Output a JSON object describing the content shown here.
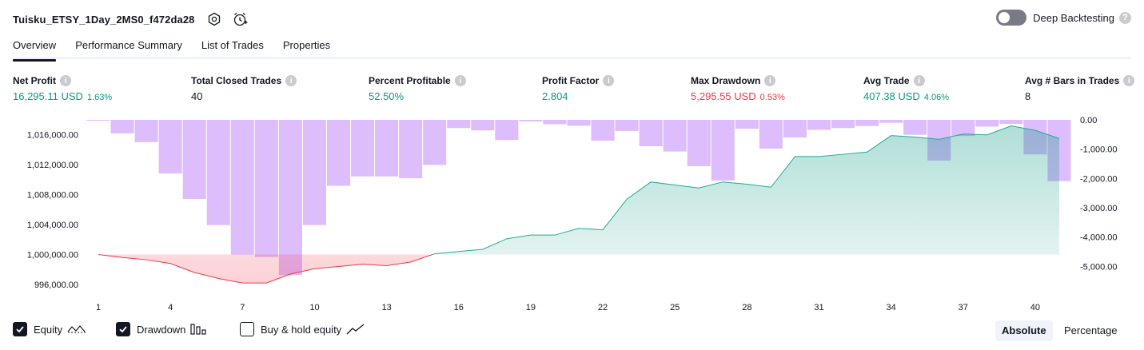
{
  "strategy": {
    "name": "Tuisku_ETSY_1Day_2MS0_f472da28"
  },
  "deep_backtesting": {
    "label": "Deep Backtesting",
    "enabled": false,
    "help": "?"
  },
  "tabs": [
    {
      "label": "Overview",
      "active": true
    },
    {
      "label": "Performance Summary",
      "active": false
    },
    {
      "label": "List of Trades",
      "active": false
    },
    {
      "label": "Properties",
      "active": false
    }
  ],
  "info_glyph": "i",
  "metrics": {
    "net_profit": {
      "label": "Net Profit",
      "value": "16,295.11 USD",
      "pct": "1.63%"
    },
    "total_closed_trades": {
      "label": "Total Closed Trades",
      "value": "40"
    },
    "percent_profitable": {
      "label": "Percent Profitable",
      "value": "52.50%"
    },
    "profit_factor": {
      "label": "Profit Factor",
      "value": "2.804"
    },
    "max_drawdown": {
      "label": "Max Drawdown",
      "value": "5,295.55 USD",
      "pct": "0.53%"
    },
    "avg_trade": {
      "label": "Avg Trade",
      "value": "407.38 USD",
      "pct": "4.06%"
    },
    "avg_bars": {
      "label": "Avg # Bars in Trades",
      "value": "8"
    }
  },
  "colors": {
    "profit": "#089981",
    "loss": "#f23645",
    "equity_line": "#22ab94",
    "drawdown_line": "#f23645",
    "drawdown_bar": "#d9b6fb"
  },
  "legend": {
    "equity": {
      "label": "Equity",
      "checked": true,
      "icon": "equity-line-icon"
    },
    "drawdown": {
      "label": "Drawdown",
      "checked": true,
      "icon": "drawdown-bars-icon"
    },
    "buy_hold": {
      "label": "Buy & hold equity",
      "checked": false,
      "icon": "trend-line-icon"
    }
  },
  "view_mode": {
    "absolute": "Absolute",
    "percentage": "Percentage",
    "selected": "Absolute"
  },
  "chart_data": {
    "type": "area",
    "x": [
      1,
      2,
      3,
      4,
      5,
      6,
      7,
      8,
      9,
      10,
      11,
      12,
      13,
      14,
      15,
      16,
      17,
      18,
      19,
      20,
      21,
      22,
      23,
      24,
      25,
      26,
      27,
      28,
      29,
      30,
      31,
      32,
      33,
      34,
      35,
      36,
      37,
      38,
      39,
      40,
      41
    ],
    "x_ticks": [
      "1",
      "4",
      "7",
      "10",
      "13",
      "16",
      "19",
      "22",
      "25",
      "28",
      "31",
      "34",
      "37",
      "40"
    ],
    "y_left_ticks": [
      "1,016,000.00",
      "1,012,000.00",
      "1,008,000.00",
      "1,004,000.00",
      "1,000,000.00",
      "996,000.00"
    ],
    "y_left_range": [
      994500,
      1018000
    ],
    "y_right_ticks": [
      "0.00",
      "-1,000.00",
      "-2,000.00",
      "-3,000.00",
      "-4,000.00",
      "-5,000.00"
    ],
    "y_right_range": [
      -6000,
      0
    ],
    "baseline": 1000000,
    "series": [
      {
        "name": "Equity",
        "values": [
          1000000,
          999600,
          999300,
          998800,
          997600,
          996800,
          996200,
          996200,
          997400,
          998100,
          998400,
          998700,
          998500,
          999000,
          1000100,
          1000400,
          1000700,
          1002100,
          1002600,
          1002600,
          1003500,
          1003300,
          1007400,
          1009700,
          1009300,
          1008900,
          1009700,
          1009400,
          1009000,
          1013100,
          1013100,
          1013400,
          1013700,
          1015900,
          1015700,
          1015400,
          1016100,
          1016000,
          1017200,
          1016600,
          1015500
        ]
      },
      {
        "name": "Drawdown",
        "values": [
          0,
          -460,
          -760,
          -1830,
          -2700,
          -3590,
          -4600,
          -4680,
          -5300,
          -3590,
          -2250,
          -1930,
          -1930,
          -1990,
          -1540,
          -280,
          -360,
          -690,
          -50,
          -150,
          -200,
          -710,
          -380,
          -900,
          -1080,
          -1580,
          -2070,
          -300,
          -980,
          -600,
          -340,
          -280,
          -210,
          -100,
          -510,
          -1390,
          -550,
          -230,
          -140,
          -1180,
          -2090
        ]
      }
    ]
  }
}
